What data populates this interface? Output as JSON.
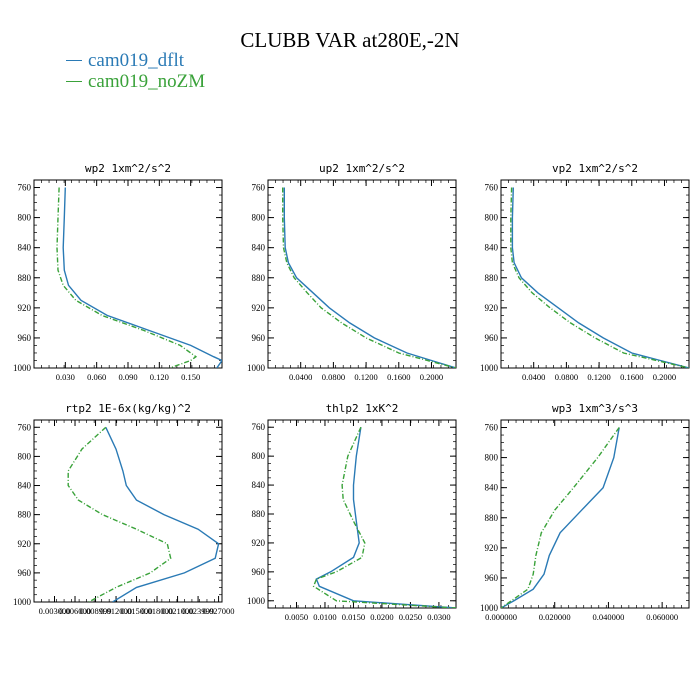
{
  "title": "CLUBB VAR at280E,-2N",
  "colors": {
    "dflt": "#2a7ab5",
    "noZM": "#3aa23a"
  },
  "legend": [
    {
      "label": "cam019_dflt",
      "color": "#2a7ab5"
    },
    {
      "label": "cam019_noZM",
      "color": "#3aa23a"
    }
  ],
  "chart_data": [
    {
      "type": "line",
      "title": "wp2   1xm^2/s^2",
      "xlim": [
        0.0,
        0.18
      ],
      "ylim": [
        1000,
        750
      ],
      "xticks": [
        0.03,
        0.06,
        0.09,
        0.12,
        0.15
      ],
      "xtick_labels": [
        "0.030",
        "0.060",
        "0.090",
        "0.120",
        "0.150"
      ],
      "yticks": [
        760,
        800,
        840,
        880,
        920,
        960,
        1000
      ],
      "ytick_labels": [
        "760",
        "800",
        "840",
        "880",
        "920",
        "960",
        "1000"
      ],
      "series": [
        {
          "name": "cam019_dflt",
          "x": [
            0.03,
            0.029,
            0.028,
            0.029,
            0.033,
            0.045,
            0.07,
            0.11,
            0.15,
            0.172,
            0.18,
            0.175
          ],
          "y": [
            760,
            800,
            840,
            870,
            890,
            910,
            930,
            950,
            970,
            985,
            990,
            1000
          ]
        },
        {
          "name": "cam019_noZM",
          "x": [
            0.024,
            0.023,
            0.022,
            0.023,
            0.028,
            0.04,
            0.065,
            0.105,
            0.14,
            0.155,
            0.15,
            0.13
          ],
          "y": [
            760,
            800,
            840,
            870,
            890,
            910,
            930,
            950,
            970,
            985,
            990,
            1000
          ]
        }
      ]
    },
    {
      "type": "line",
      "title": "up2   1xm^2/s^2",
      "xlim": [
        0.0,
        0.23
      ],
      "ylim": [
        1000,
        750
      ],
      "xticks": [
        0.04,
        0.08,
        0.12,
        0.16,
        0.2
      ],
      "xtick_labels": [
        "0.0400",
        "0.0800",
        "0.1200",
        "0.1600",
        "0.2000"
      ],
      "yticks": [
        760,
        800,
        840,
        880,
        920,
        960,
        1000
      ],
      "ytick_labels": [
        "760",
        "800",
        "840",
        "880",
        "920",
        "960",
        "1000"
      ],
      "series": [
        {
          "name": "cam019_dflt",
          "x": [
            0.02,
            0.02,
            0.021,
            0.025,
            0.035,
            0.055,
            0.075,
            0.1,
            0.13,
            0.17,
            0.2,
            0.23
          ],
          "y": [
            760,
            800,
            840,
            860,
            880,
            900,
            920,
            940,
            960,
            980,
            990,
            1000
          ]
        },
        {
          "name": "cam019_noZM",
          "x": [
            0.018,
            0.018,
            0.019,
            0.023,
            0.032,
            0.048,
            0.065,
            0.09,
            0.12,
            0.16,
            0.195,
            0.23
          ],
          "y": [
            760,
            800,
            840,
            860,
            880,
            900,
            920,
            940,
            960,
            980,
            990,
            1000
          ]
        }
      ]
    },
    {
      "type": "line",
      "title": "vp2   1xm^2/s^2",
      "xlim": [
        0.0,
        0.23
      ],
      "ylim": [
        1000,
        750
      ],
      "xticks": [
        0.04,
        0.08,
        0.12,
        0.16,
        0.2
      ],
      "xtick_labels": [
        "0.0400",
        "0.0800",
        "0.1200",
        "0.1600",
        "0.2000"
      ],
      "yticks": [
        760,
        800,
        840,
        880,
        920,
        960,
        1000
      ],
      "ytick_labels": [
        "760",
        "800",
        "840",
        "880",
        "920",
        "960",
        "1000"
      ],
      "series": [
        {
          "name": "cam019_dflt",
          "x": [
            0.015,
            0.014,
            0.014,
            0.016,
            0.025,
            0.045,
            0.07,
            0.095,
            0.125,
            0.16,
            0.195,
            0.23
          ],
          "y": [
            760,
            800,
            840,
            860,
            880,
            900,
            920,
            940,
            960,
            980,
            990,
            1000
          ]
        },
        {
          "name": "cam019_noZM",
          "x": [
            0.013,
            0.012,
            0.012,
            0.014,
            0.022,
            0.038,
            0.06,
            0.085,
            0.115,
            0.15,
            0.19,
            0.23
          ],
          "y": [
            760,
            800,
            840,
            860,
            880,
            900,
            920,
            940,
            960,
            980,
            990,
            1000
          ]
        }
      ]
    },
    {
      "type": "line",
      "title": "rtp2   1E-6x(kg/kg)^2",
      "xlim": [
        0.0,
        0.0275
      ],
      "ylim": [
        1000,
        750
      ],
      "xticks": [
        0.003,
        0.006,
        0.009,
        0.012,
        0.015,
        0.018,
        0.021,
        0.024,
        0.027
      ],
      "xtick_labels": [
        "0.003000",
        "0.006000",
        "0.008999",
        "0.012000",
        "0.015000",
        "0.018000",
        "0.021000",
        "0.023999",
        "0.027000"
      ],
      "yticks": [
        760,
        800,
        840,
        880,
        920,
        960,
        1000
      ],
      "ytick_labels": [
        "760",
        "800",
        "840",
        "880",
        "920",
        "960",
        "1000"
      ],
      "series": [
        {
          "name": "cam019_dflt",
          "x": [
            0.0105,
            0.012,
            0.013,
            0.0135,
            0.015,
            0.019,
            0.024,
            0.027,
            0.0265,
            0.022,
            0.015,
            0.0115
          ],
          "y": [
            760,
            790,
            820,
            840,
            860,
            880,
            900,
            920,
            940,
            960,
            980,
            1000
          ]
        },
        {
          "name": "cam019_noZM",
          "x": [
            0.0105,
            0.007,
            0.005,
            0.005,
            0.0065,
            0.01,
            0.015,
            0.0195,
            0.02,
            0.017,
            0.012,
            0.008
          ],
          "y": [
            760,
            790,
            820,
            840,
            860,
            880,
            900,
            920,
            940,
            960,
            980,
            1000
          ]
        }
      ]
    },
    {
      "type": "line",
      "title": "thlp2   1xK^2",
      "xlim": [
        0.0,
        0.033
      ],
      "ylim": [
        1010,
        750
      ],
      "xticks": [
        0.005,
        0.01,
        0.015,
        0.02,
        0.025,
        0.03
      ],
      "xtick_labels": [
        "0.0050",
        "0.0100",
        "0.0150",
        "0.0200",
        "0.0250",
        "0.0300"
      ],
      "yticks": [
        760,
        800,
        840,
        880,
        920,
        960,
        1000
      ],
      "ytick_labels": [
        "760",
        "800",
        "840",
        "880",
        "920",
        "960",
        "1000"
      ],
      "series": [
        {
          "name": "cam019_dflt",
          "x": [
            0.0163,
            0.0155,
            0.015,
            0.015,
            0.0155,
            0.016,
            0.015,
            0.011,
            0.0085,
            0.009,
            0.015,
            0.033
          ],
          "y": [
            760,
            800,
            840,
            860,
            890,
            920,
            940,
            960,
            970,
            980,
            1000,
            1010
          ]
        },
        {
          "name": "cam019_noZM",
          "x": [
            0.0163,
            0.014,
            0.013,
            0.0132,
            0.015,
            0.017,
            0.0165,
            0.012,
            0.0085,
            0.008,
            0.012,
            0.033
          ],
          "y": [
            760,
            800,
            840,
            860,
            890,
            920,
            940,
            960,
            970,
            980,
            1000,
            1010
          ]
        }
      ]
    },
    {
      "type": "line",
      "title": "wp3   1xm^3/s^3",
      "xlim": [
        0.0,
        0.07
      ],
      "ylim": [
        1000,
        750
      ],
      "xticks": [
        0.0,
        0.02,
        0.04,
        0.06
      ],
      "xtick_labels": [
        "0.000000",
        "0.020000",
        "0.040000",
        "0.060000"
      ],
      "yticks": [
        760,
        800,
        840,
        880,
        920,
        960,
        1000
      ],
      "ytick_labels": [
        "760",
        "800",
        "840",
        "880",
        "920",
        "960",
        "1000"
      ],
      "series": [
        {
          "name": "cam019_dflt",
          "x": [
            0.044,
            0.042,
            0.038,
            0.03,
            0.022,
            0.018,
            0.016,
            0.012,
            0.005,
            0.0
          ],
          "y": [
            760,
            800,
            840,
            870,
            900,
            930,
            955,
            975,
            990,
            1000
          ]
        },
        {
          "name": "cam019_noZM",
          "x": [
            0.044,
            0.036,
            0.027,
            0.02,
            0.015,
            0.013,
            0.012,
            0.01,
            0.004,
            0.0
          ],
          "y": [
            760,
            800,
            840,
            870,
            900,
            930,
            955,
            975,
            990,
            1000
          ]
        }
      ]
    }
  ]
}
